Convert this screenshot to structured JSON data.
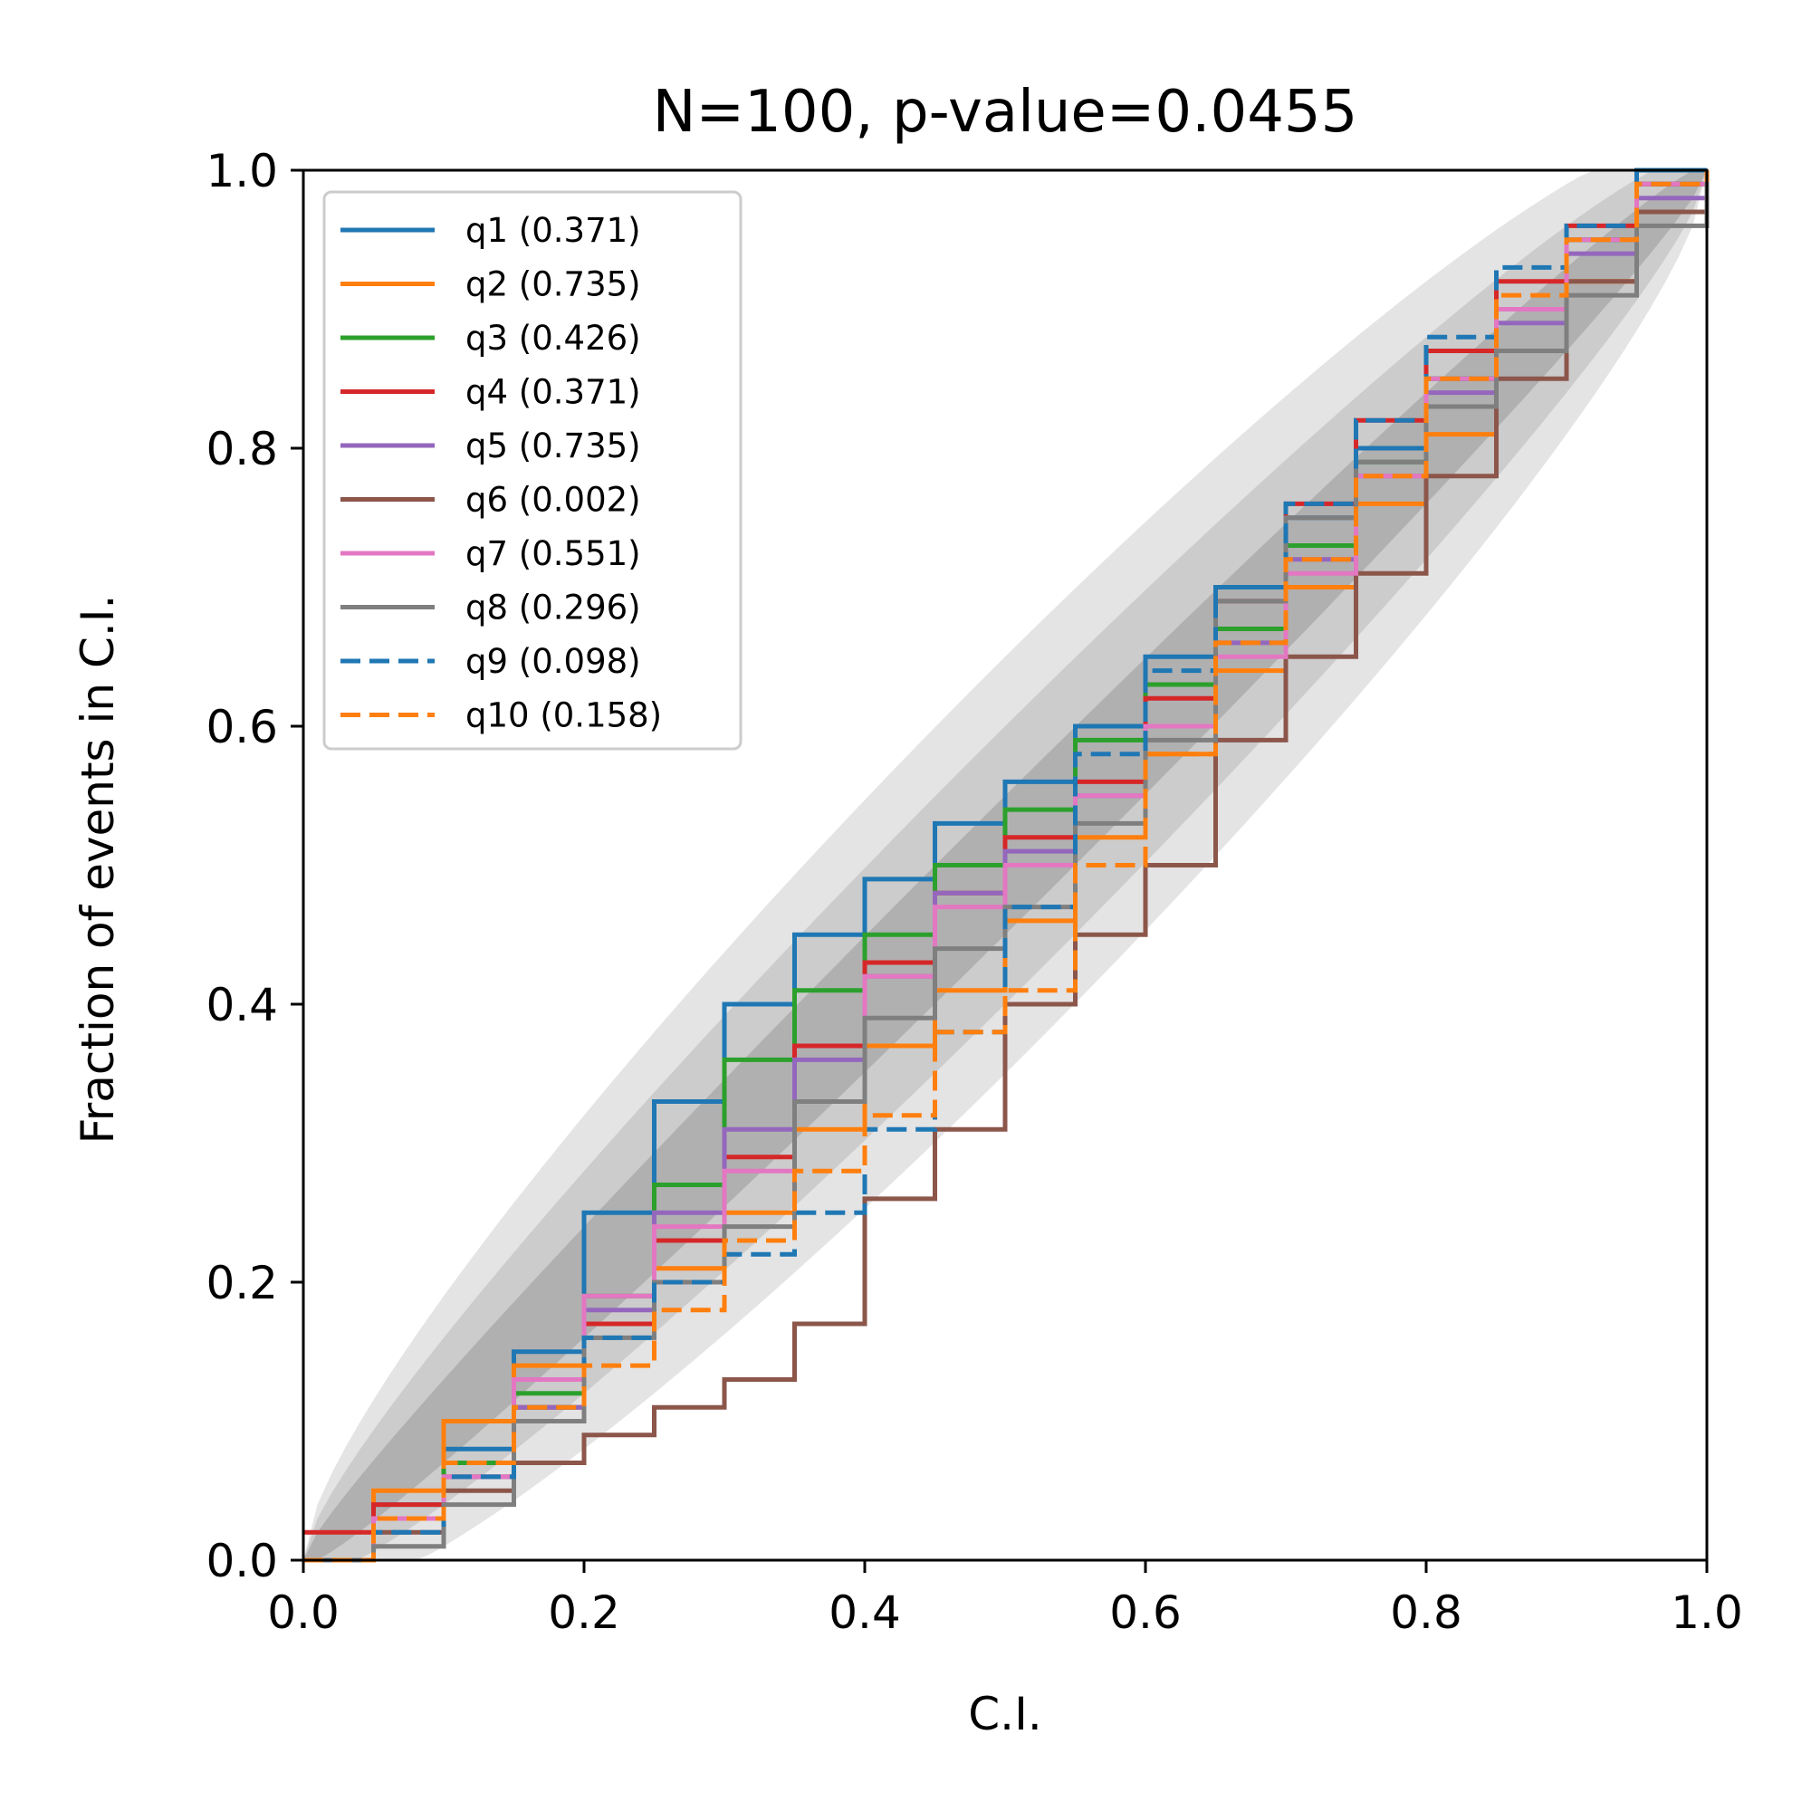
{
  "chart_data": {
    "type": "line",
    "title": "N=100, p-value=0.0455",
    "xlabel": "C.I.",
    "ylabel": "Fraction of events in C.I.",
    "xlim": [
      0.0,
      1.0
    ],
    "ylim": [
      0.0,
      1.0
    ],
    "xticks": [
      "0.0",
      "0.2",
      "0.4",
      "0.6",
      "0.8",
      "1.0"
    ],
    "yticks": [
      "0.0",
      "0.2",
      "0.4",
      "0.6",
      "0.8",
      "1.0"
    ],
    "grid": false,
    "legend_position": "upper-left",
    "confidence_bands": [
      {
        "level": "1-sigma",
        "color": "#b0b0b0"
      },
      {
        "level": "2-sigma",
        "color": "#cccccc"
      },
      {
        "level": "3-sigma",
        "color": "#e4e4e4"
      }
    ],
    "series": [
      {
        "name": "q1 (0.371)",
        "color": "#1f77b4",
        "dash": "solid",
        "x": [
          0,
          0.05,
          0.1,
          0.15,
          0.2,
          0.25,
          0.3,
          0.35,
          0.4,
          0.45,
          0.5,
          0.55,
          0.6,
          0.65,
          0.7,
          0.75,
          0.8,
          0.85,
          0.9,
          0.95,
          1.0
        ],
        "y": [
          0,
          0.04,
          0.08,
          0.15,
          0.25,
          0.33,
          0.4,
          0.45,
          0.49,
          0.53,
          0.56,
          0.6,
          0.65,
          0.7,
          0.75,
          0.8,
          0.85,
          0.9,
          0.95,
          1.0,
          1.0
        ]
      },
      {
        "name": "q2 (0.735)",
        "color": "#ff7f0e",
        "dash": "solid",
        "x": [
          0,
          0.05,
          0.1,
          0.15,
          0.2,
          0.25,
          0.3,
          0.35,
          0.4,
          0.45,
          0.5,
          0.55,
          0.6,
          0.65,
          0.7,
          0.75,
          0.8,
          0.85,
          0.9,
          0.95,
          1.0
        ],
        "y": [
          0,
          0.05,
          0.1,
          0.14,
          0.17,
          0.21,
          0.25,
          0.31,
          0.37,
          0.41,
          0.46,
          0.52,
          0.58,
          0.64,
          0.7,
          0.76,
          0.81,
          0.87,
          0.92,
          0.97,
          1.0
        ]
      },
      {
        "name": "q3 (0.426)",
        "color": "#2ca02c",
        "dash": "solid",
        "x": [
          0,
          0.05,
          0.1,
          0.15,
          0.2,
          0.25,
          0.3,
          0.35,
          0.4,
          0.45,
          0.5,
          0.55,
          0.6,
          0.65,
          0.7,
          0.75,
          0.8,
          0.85,
          0.9,
          0.95,
          1.0
        ],
        "y": [
          0,
          0.03,
          0.07,
          0.12,
          0.19,
          0.27,
          0.36,
          0.41,
          0.45,
          0.5,
          0.54,
          0.59,
          0.63,
          0.67,
          0.73,
          0.79,
          0.85,
          0.9,
          0.95,
          0.99,
          1.0
        ]
      },
      {
        "name": "q4 (0.371)",
        "color": "#d62728",
        "dash": "solid",
        "x": [
          0,
          0.05,
          0.1,
          0.15,
          0.2,
          0.25,
          0.3,
          0.35,
          0.4,
          0.45,
          0.5,
          0.55,
          0.6,
          0.65,
          0.7,
          0.75,
          0.8,
          0.85,
          0.9,
          0.95,
          1.0
        ],
        "y": [
          0.02,
          0.04,
          0.06,
          0.11,
          0.17,
          0.23,
          0.29,
          0.37,
          0.43,
          0.48,
          0.52,
          0.56,
          0.62,
          0.69,
          0.76,
          0.82,
          0.87,
          0.92,
          0.96,
          0.99,
          1.0
        ]
      },
      {
        "name": "q5 (0.735)",
        "color": "#9467bd",
        "dash": "solid",
        "x": [
          0,
          0.05,
          0.1,
          0.15,
          0.2,
          0.25,
          0.3,
          0.35,
          0.4,
          0.45,
          0.5,
          0.55,
          0.6,
          0.65,
          0.7,
          0.75,
          0.8,
          0.85,
          0.9,
          0.95,
          1.0
        ],
        "y": [
          0,
          0.03,
          0.06,
          0.11,
          0.18,
          0.25,
          0.31,
          0.36,
          0.42,
          0.48,
          0.51,
          0.55,
          0.6,
          0.66,
          0.72,
          0.78,
          0.84,
          0.89,
          0.94,
          0.98,
          1.0
        ]
      },
      {
        "name": "q6 (0.002)",
        "color": "#8c564b",
        "dash": "solid",
        "x": [
          0,
          0.05,
          0.1,
          0.15,
          0.2,
          0.25,
          0.3,
          0.35,
          0.4,
          0.45,
          0.5,
          0.55,
          0.6,
          0.65,
          0.7,
          0.75,
          0.8,
          0.85,
          0.9,
          0.95,
          1.0
        ],
        "y": [
          0,
          0.02,
          0.05,
          0.07,
          0.09,
          0.11,
          0.13,
          0.17,
          0.26,
          0.31,
          0.4,
          0.45,
          0.5,
          0.59,
          0.65,
          0.71,
          0.78,
          0.85,
          0.92,
          0.97,
          1.0
        ]
      },
      {
        "name": "q7 (0.551)",
        "color": "#e377c2",
        "dash": "solid",
        "x": [
          0,
          0.05,
          0.1,
          0.15,
          0.2,
          0.25,
          0.3,
          0.35,
          0.4,
          0.45,
          0.5,
          0.55,
          0.6,
          0.65,
          0.7,
          0.75,
          0.8,
          0.85,
          0.9,
          0.95,
          1.0
        ],
        "y": [
          0,
          0.03,
          0.06,
          0.13,
          0.19,
          0.24,
          0.28,
          0.33,
          0.42,
          0.47,
          0.5,
          0.55,
          0.6,
          0.65,
          0.71,
          0.78,
          0.85,
          0.9,
          0.95,
          0.99,
          1.0
        ]
      },
      {
        "name": "q8 (0.296)",
        "color": "#7f7f7f",
        "dash": "solid",
        "x": [
          0,
          0.05,
          0.1,
          0.15,
          0.2,
          0.25,
          0.3,
          0.35,
          0.4,
          0.45,
          0.5,
          0.55,
          0.6,
          0.65,
          0.7,
          0.75,
          0.8,
          0.85,
          0.9,
          0.95,
          1.0
        ],
        "y": [
          0,
          0.01,
          0.04,
          0.1,
          0.16,
          0.2,
          0.24,
          0.33,
          0.39,
          0.44,
          0.47,
          0.53,
          0.59,
          0.69,
          0.75,
          0.79,
          0.83,
          0.87,
          0.91,
          0.96,
          1.0
        ]
      },
      {
        "name": "q9 (0.098)",
        "color": "#1f77b4",
        "dash": "dashed",
        "x": [
          0,
          0.05,
          0.1,
          0.15,
          0.2,
          0.25,
          0.3,
          0.35,
          0.4,
          0.45,
          0.5,
          0.55,
          0.6,
          0.65,
          0.7,
          0.75,
          0.8,
          0.85,
          0.9,
          0.95,
          1.0
        ],
        "y": [
          0,
          0.02,
          0.06,
          0.11,
          0.16,
          0.2,
          0.22,
          0.25,
          0.31,
          0.38,
          0.47,
          0.58,
          0.64,
          0.7,
          0.76,
          0.82,
          0.88,
          0.93,
          0.96,
          0.99,
          1.0
        ]
      },
      {
        "name": "q10 (0.158)",
        "color": "#ff7f0e",
        "dash": "dashed",
        "x": [
          0,
          0.05,
          0.1,
          0.15,
          0.2,
          0.25,
          0.3,
          0.35,
          0.4,
          0.45,
          0.5,
          0.55,
          0.6,
          0.65,
          0.7,
          0.75,
          0.8,
          0.85,
          0.9,
          0.95,
          1.0
        ],
        "y": [
          0,
          0.03,
          0.07,
          0.11,
          0.14,
          0.18,
          0.23,
          0.28,
          0.32,
          0.38,
          0.41,
          0.5,
          0.58,
          0.66,
          0.72,
          0.78,
          0.85,
          0.91,
          0.95,
          0.99,
          1.0
        ]
      }
    ]
  }
}
